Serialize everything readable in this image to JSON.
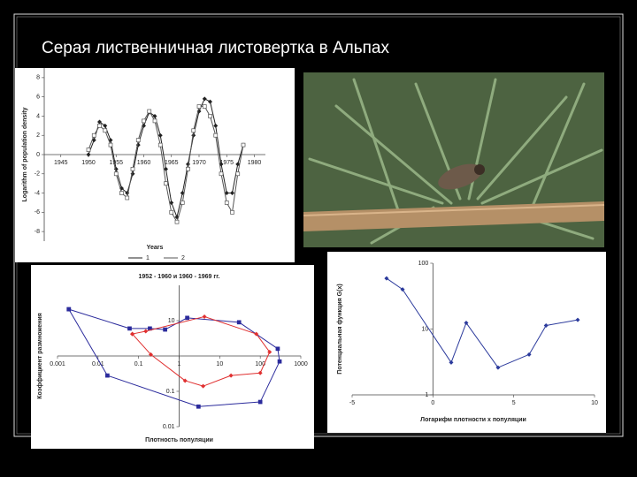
{
  "slide": {
    "title": "Серая лиственничная листовертка в Альпах"
  },
  "chart_data": [
    {
      "type": "line",
      "y_label": "Logarithm of population density",
      "x_label": "Years",
      "x": [
        1950,
        1951,
        1952,
        1953,
        1954,
        1955,
        1956,
        1957,
        1958,
        1959,
        1960,
        1961,
        1962,
        1963,
        1964,
        1965,
        1966,
        1967,
        1968,
        1969,
        1970,
        1971,
        1972,
        1973,
        1974,
        1975,
        1976,
        1977,
        1978
      ],
      "series": [
        {
          "name": "1",
          "color": "#222222",
          "marker": "diamond",
          "values": [
            0,
            1.5,
            3.4,
            3,
            1.5,
            -1.5,
            -3.5,
            -4,
            -2,
            1,
            3,
            4.4,
            4,
            2,
            -1.5,
            -5,
            -6.5,
            -4,
            -1,
            2,
            4.5,
            5.8,
            5.5,
            3,
            -1,
            -4,
            -4,
            -1,
            1
          ]
        },
        {
          "name": "2",
          "color": "#555555",
          "marker": "square",
          "values": [
            0.5,
            2,
            3,
            2.5,
            1,
            -2,
            -4,
            -4.5,
            -1.5,
            1.5,
            3.5,
            4.5,
            3.5,
            1,
            -3,
            -6,
            -7,
            -5,
            -1.5,
            2.5,
            5,
            5,
            4,
            2,
            -2,
            -5,
            -6,
            -2,
            1
          ]
        }
      ],
      "xlim": [
        1942,
        1982
      ],
      "xticks": [
        1945,
        1950,
        1955,
        1960,
        1965,
        1970,
        1975,
        1980
      ],
      "ylim": [
        -9,
        9
      ],
      "yticks": [
        8,
        6,
        4,
        2,
        0,
        -2,
        -4,
        -6,
        -8
      ]
    },
    {
      "type": "line",
      "title": "1952 - 1960 и 1960 - 1969 гг.",
      "x_label": "Плотность популяции",
      "y_label": "Коэффициент размножения",
      "xlog": true,
      "ylog": true,
      "series": [
        {
          "color": "#2b2b9c",
          "marker": "square",
          "x": [
            0.0019,
            0.06,
            0.19,
            0.45,
            1.58,
            30,
            270,
            300,
            100,
            3,
            0.017,
            0.0019
          ],
          "values": [
            21,
            6,
            6,
            5.6,
            12,
            9,
            1.6,
            0.7,
            0.05,
            0.037,
            0.28,
            21
          ]
        },
        {
          "color": "#e03030",
          "marker": "diamond",
          "x": [
            0.07,
            0.15,
            4.2,
            80,
            170,
            100,
            19,
            3.9,
            1.4,
            0.2,
            0.07
          ],
          "values": [
            4.2,
            5,
            13,
            4.2,
            1.3,
            0.33,
            0.28,
            0.14,
            0.2,
            1.1,
            4.2
          ]
        }
      ],
      "xlim": [
        0.001,
        1000
      ],
      "xticks": [
        0.001,
        0.01,
        0.1,
        1,
        10,
        100,
        1000
      ],
      "ylim": [
        0.01,
        100
      ],
      "yticks": [
        10,
        0.1,
        0.01
      ]
    },
    {
      "type": "line",
      "x_label": "Логарифм плотности х популяции",
      "y_label": "Потенциальная функция G(x)",
      "ylog": true,
      "series": [
        {
          "color": "#2b3a9c",
          "marker": "diamond",
          "x": [
            -2.87,
            -1.88,
            1.13,
            2.06,
            4.03,
            5.95,
            7.0,
            8.96
          ],
          "values": [
            59,
            40,
            3.1,
            12.4,
            2.6,
            4.1,
            11.3,
            13.8
          ]
        }
      ],
      "xlim": [
        -5,
        10
      ],
      "xticks": [
        -5,
        0,
        5,
        10
      ],
      "ylim": [
        1,
        100
      ],
      "yticks": [
        1,
        10,
        100
      ]
    }
  ]
}
